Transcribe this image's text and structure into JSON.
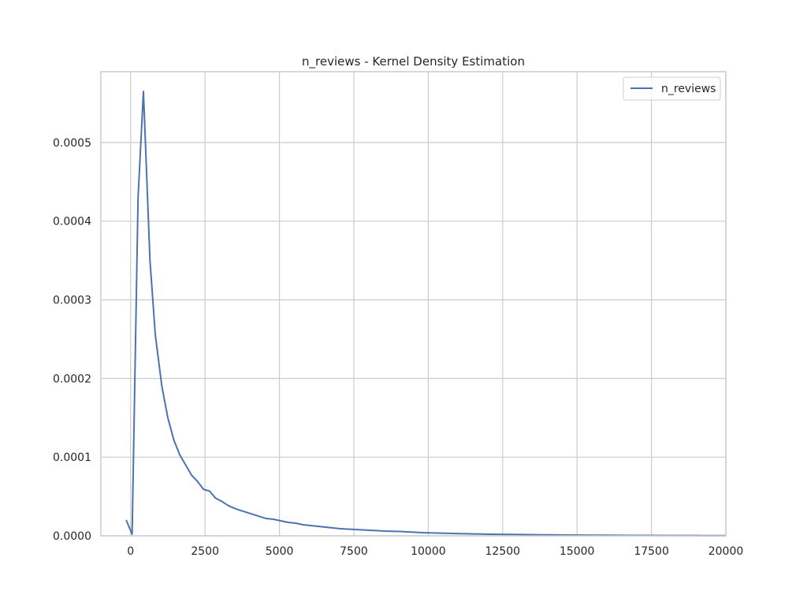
{
  "chart_data": {
    "type": "line",
    "title": "n_reviews - Kernel Density Estimation",
    "xlabel": "",
    "ylabel": "",
    "xlim": [
      -1000,
      20000
    ],
    "ylim": [
      0,
      0.00059
    ],
    "x_ticks": [
      0,
      2500,
      5000,
      7500,
      10000,
      12500,
      15000,
      17500,
      20000
    ],
    "x_tick_labels": [
      "0",
      "2500",
      "5000",
      "7500",
      "10000",
      "12500",
      "15000",
      "17500",
      "20000"
    ],
    "y_ticks": [
      0,
      0.0001,
      0.0002,
      0.0003,
      0.0004,
      0.0005
    ],
    "y_tick_labels": [
      "0.0000",
      "0.0001",
      "0.0002",
      "0.0003",
      "0.0004",
      "0.0005"
    ],
    "grid": true,
    "legend_position": "upper-right",
    "series": [
      {
        "name": "n_reviews",
        "color": "#4c72b0",
        "x": [
          -150,
          50,
          250,
          430,
          650,
          830,
          1050,
          1250,
          1450,
          1650,
          1850,
          2050,
          2250,
          2450,
          2650,
          2850,
          3050,
          3300,
          3550,
          3800,
          4050,
          4300,
          4550,
          4800,
          5050,
          5300,
          5550,
          5800,
          6050,
          6300,
          6550,
          6800,
          7050,
          7300,
          7550,
          7800,
          8050,
          8300,
          8550,
          8800,
          9050,
          9300,
          9550,
          9800,
          10050,
          10300,
          10550,
          10800,
          11050,
          11300,
          11550,
          11800,
          12050,
          12300,
          12550,
          12800,
          13050,
          13300,
          13550,
          13800,
          14050,
          14300,
          14550,
          14800,
          15050,
          15300,
          15550,
          15800,
          16050,
          16300,
          16550,
          16800,
          17050,
          17300,
          17550,
          17800,
          18050,
          18300,
          18550,
          18800,
          19050,
          19300,
          19550,
          19800,
          20000
        ],
        "y": [
          2e-05,
          2e-06,
          0.00043,
          0.000565,
          0.00035,
          0.000255,
          0.00019,
          0.00015,
          0.000122,
          0.000103,
          9e-05,
          7.7e-05,
          6.9e-05,
          5.9e-05,
          5.7e-05,
          4.8e-05,
          4.4e-05,
          3.8e-05,
          3.4e-05,
          3.1e-05,
          2.8e-05,
          2.5e-05,
          2.2e-05,
          2.1e-05,
          1.9e-05,
          1.7e-05,
          1.6e-05,
          1.4e-05,
          1.3e-05,
          1.2e-05,
          1.1e-05,
          1e-05,
          9e-06,
          8.5e-06,
          8e-06,
          7.5e-06,
          7e-06,
          6.5e-06,
          6e-06,
          5.8e-06,
          5.5e-06,
          5e-06,
          4.5e-06,
          4e-06,
          3.8e-06,
          3.5e-06,
          3.2e-06,
          3e-06,
          2.8e-06,
          2.6e-06,
          2.4e-06,
          2.2e-06,
          2e-06,
          1.9e-06,
          1.8e-06,
          1.7e-06,
          1.6e-06,
          1.5e-06,
          1.4e-06,
          1.3e-06,
          1.2e-06,
          1.1e-06,
          1e-06,
          9.5e-07,
          9e-07,
          8.5e-07,
          8e-07,
          7.5e-07,
          7e-07,
          6.5e-07,
          6e-07,
          5.5e-07,
          5e-07,
          4.8e-07,
          4.5e-07,
          4.2e-07,
          4e-07,
          3.8e-07,
          3.6e-07,
          3.4e-07,
          3.2e-07,
          3e-07,
          2.8e-07,
          2.6e-07,
          2.5e-07
        ]
      }
    ]
  },
  "colors": {
    "grid": "#cccccc",
    "axes_border": "#cccccc",
    "background": "#ffffff"
  }
}
